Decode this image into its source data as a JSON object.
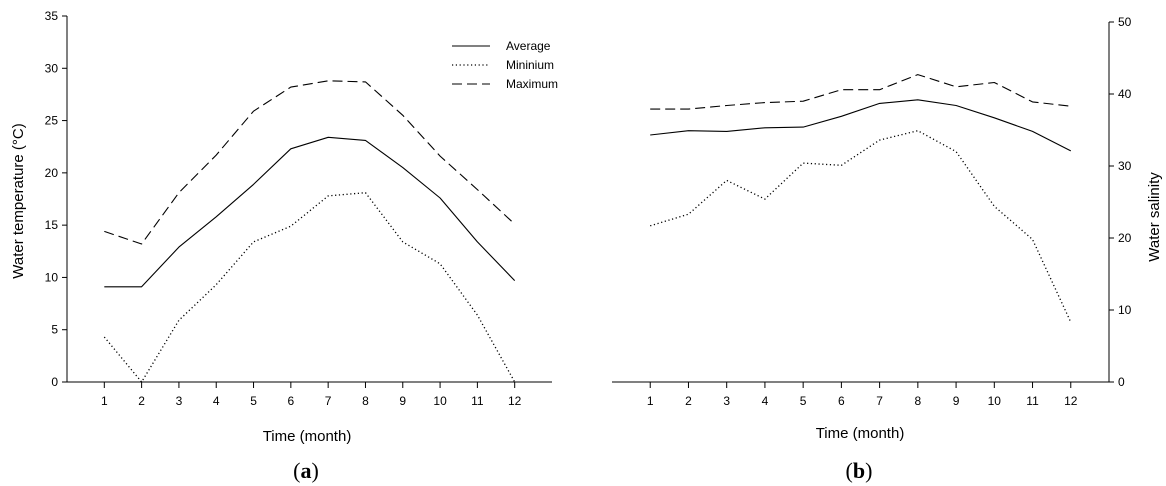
{
  "chart_data": [
    {
      "type": "line",
      "panel_label": "a",
      "ylabel": "Water temperature (°C)",
      "xlabel": "Time (month)",
      "x": [
        1,
        2,
        3,
        4,
        5,
        6,
        7,
        8,
        9,
        10,
        11,
        12
      ],
      "xlim": [
        0,
        13
      ],
      "ylim": [
        0,
        35
      ],
      "yticks": [
        0,
        5,
        10,
        15,
        20,
        25,
        30,
        35
      ],
      "y_axis_side": "left",
      "grid": false,
      "legend_position": "top-right",
      "series": [
        {
          "name": "Average",
          "style": "solid",
          "values": [
            9.1,
            9.1,
            12.9,
            15.8,
            18.9,
            22.3,
            23.4,
            23.1,
            20.5,
            17.6,
            13.4,
            9.7
          ]
        },
        {
          "name": "Mininium",
          "style": "dotted",
          "values": [
            4.3,
            0.0,
            5.9,
            9.3,
            13.4,
            14.9,
            17.8,
            18.1,
            13.4,
            11.3,
            6.4,
            0.0
          ]
        },
        {
          "name": "Maximum",
          "style": "dashed",
          "values": [
            14.4,
            13.2,
            18.1,
            21.7,
            25.9,
            28.2,
            28.8,
            28.7,
            25.5,
            21.6,
            18.4,
            15.1
          ]
        }
      ]
    },
    {
      "type": "line",
      "panel_label": "b",
      "ylabel": "Water salinity",
      "xlabel": "Time (month)",
      "x": [
        1,
        2,
        3,
        4,
        5,
        6,
        7,
        8,
        9,
        10,
        11,
        12
      ],
      "xlim": [
        0,
        13
      ],
      "ylim": [
        0,
        50
      ],
      "yticks": [
        0,
        10,
        20,
        30,
        40,
        50
      ],
      "y_axis_side": "right",
      "grid": false,
      "series": [
        {
          "style": "solid",
          "values": [
            34.3,
            34.9,
            34.8,
            35.3,
            35.4,
            36.9,
            38.7,
            39.2,
            38.4,
            36.7,
            34.8,
            32.1
          ]
        },
        {
          "style": "dotted",
          "values": [
            21.7,
            23.3,
            28.0,
            25.4,
            30.4,
            30.1,
            33.6,
            34.9,
            32.0,
            24.4,
            19.8,
            8.3
          ]
        },
        {
          "style": "dashed",
          "values": [
            37.9,
            37.9,
            38.4,
            38.8,
            39.0,
            40.6,
            40.6,
            42.7,
            41.0,
            41.6,
            38.9,
            38.3
          ]
        }
      ]
    }
  ]
}
